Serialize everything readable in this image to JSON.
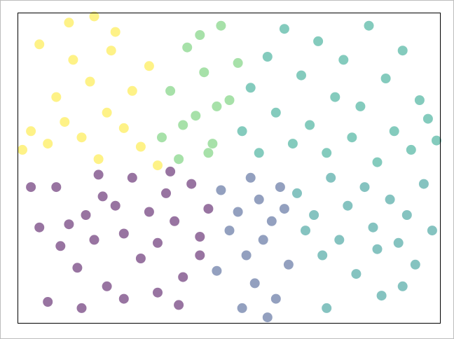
{
  "chart_data": {
    "type": "scatter",
    "title": "",
    "xlabel": "",
    "ylabel": "",
    "xlim": [
      0,
      1
    ],
    "ylim": [
      0,
      1
    ],
    "grid": false,
    "legend": "none",
    "ticks_visible": false,
    "marker_alpha": 0.55,
    "colormap": "viridis",
    "colormap_stops": [
      "#440154",
      "#3b528b",
      "#21918c",
      "#5ec962",
      "#fde725"
    ],
    "points_by_group": [
      {
        "region": "lower-left",
        "color_value": 0.0,
        "color": "#440154",
        "points": [
          [
            0.03,
            0.44
          ],
          [
            0.05,
            0.31
          ],
          [
            0.09,
            0.44
          ],
          [
            0.1,
            0.25
          ],
          [
            0.12,
            0.32
          ],
          [
            0.14,
            0.18
          ],
          [
            0.16,
            0.35
          ],
          [
            0.18,
            0.27
          ],
          [
            0.2,
            0.41
          ],
          [
            0.21,
            0.12
          ],
          [
            0.23,
            0.38
          ],
          [
            0.25,
            0.29
          ],
          [
            0.27,
            0.47
          ],
          [
            0.29,
            0.21
          ],
          [
            0.31,
            0.36
          ],
          [
            0.33,
            0.26
          ],
          [
            0.35,
            0.42
          ],
          [
            0.37,
            0.33
          ],
          [
            0.39,
            0.15
          ],
          [
            0.41,
            0.45
          ],
          [
            0.43,
            0.28
          ],
          [
            0.45,
            0.37
          ],
          [
            0.07,
            0.07
          ],
          [
            0.15,
            0.05
          ],
          [
            0.25,
            0.08
          ],
          [
            0.33,
            0.1
          ],
          [
            0.19,
            0.48
          ],
          [
            0.36,
            0.49
          ],
          [
            0.38,
            0.06
          ],
          [
            0.43,
            0.22
          ]
        ]
      },
      {
        "region": "lower-middle",
        "color_value": 0.3,
        "color": "#3b528b",
        "points": [
          [
            0.48,
            0.43
          ],
          [
            0.5,
            0.3
          ],
          [
            0.52,
            0.36
          ],
          [
            0.54,
            0.22
          ],
          [
            0.55,
            0.47
          ],
          [
            0.56,
            0.13
          ],
          [
            0.57,
            0.4
          ],
          [
            0.58,
            0.27
          ],
          [
            0.6,
            0.33
          ],
          [
            0.61,
            0.08
          ],
          [
            0.62,
            0.44
          ],
          [
            0.64,
            0.19
          ],
          [
            0.53,
            0.05
          ],
          [
            0.59,
            0.02
          ],
          [
            0.47,
            0.17
          ],
          [
            0.63,
            0.37
          ]
        ]
      },
      {
        "region": "lower-right",
        "color_value": 0.5,
        "color": "#21918c",
        "points": [
          [
            0.66,
            0.42
          ],
          [
            0.68,
            0.3
          ],
          [
            0.7,
            0.35
          ],
          [
            0.72,
            0.22
          ],
          [
            0.74,
            0.47
          ],
          [
            0.76,
            0.27
          ],
          [
            0.78,
            0.38
          ],
          [
            0.8,
            0.16
          ],
          [
            0.82,
            0.44
          ],
          [
            0.84,
            0.31
          ],
          [
            0.86,
            0.09
          ],
          [
            0.88,
            0.4
          ],
          [
            0.9,
            0.26
          ],
          [
            0.92,
            0.35
          ],
          [
            0.94,
            0.19
          ],
          [
            0.96,
            0.45
          ],
          [
            0.98,
            0.3
          ],
          [
            0.73,
            0.05
          ],
          [
            0.85,
            0.24
          ],
          [
            0.91,
            0.12
          ]
        ]
      },
      {
        "region": "upper-right",
        "color_value": 0.6,
        "color": "#1fa187",
        "points": [
          [
            0.53,
            0.62
          ],
          [
            0.55,
            0.76
          ],
          [
            0.57,
            0.55
          ],
          [
            0.59,
            0.86
          ],
          [
            0.61,
            0.68
          ],
          [
            0.63,
            0.95
          ],
          [
            0.65,
            0.58
          ],
          [
            0.67,
            0.8
          ],
          [
            0.69,
            0.64
          ],
          [
            0.71,
            0.91
          ],
          [
            0.73,
            0.55
          ],
          [
            0.75,
            0.73
          ],
          [
            0.77,
            0.85
          ],
          [
            0.79,
            0.6
          ],
          [
            0.81,
            0.7
          ],
          [
            0.83,
            0.96
          ],
          [
            0.85,
            0.52
          ],
          [
            0.87,
            0.79
          ],
          [
            0.89,
            0.62
          ],
          [
            0.91,
            0.88
          ],
          [
            0.93,
            0.56
          ],
          [
            0.95,
            0.72
          ],
          [
            0.97,
            0.66
          ],
          [
            0.99,
            0.59
          ]
        ]
      },
      {
        "region": "upper-middle",
        "color_value": 0.8,
        "color": "#5ec962",
        "points": [
          [
            0.34,
            0.6
          ],
          [
            0.36,
            0.75
          ],
          [
            0.38,
            0.53
          ],
          [
            0.4,
            0.89
          ],
          [
            0.42,
            0.67
          ],
          [
            0.44,
            0.81
          ],
          [
            0.46,
            0.58
          ],
          [
            0.48,
            0.96
          ],
          [
            0.5,
            0.72
          ],
          [
            0.52,
            0.84
          ],
          [
            0.39,
            0.64
          ],
          [
            0.45,
            0.55
          ],
          [
            0.47,
            0.7
          ],
          [
            0.43,
            0.93
          ]
        ]
      },
      {
        "region": "upper-left",
        "color_value": 1.0,
        "color": "#fde725",
        "points": [
          [
            0.01,
            0.56
          ],
          [
            0.03,
            0.62
          ],
          [
            0.05,
            0.9
          ],
          [
            0.07,
            0.58
          ],
          [
            0.09,
            0.73
          ],
          [
            0.11,
            0.65
          ],
          [
            0.13,
            0.85
          ],
          [
            0.15,
            0.6
          ],
          [
            0.17,
            0.78
          ],
          [
            0.19,
            0.53
          ],
          [
            0.21,
            0.68
          ],
          [
            0.23,
            0.94
          ],
          [
            0.25,
            0.63
          ],
          [
            0.27,
            0.75
          ],
          [
            0.29,
            0.57
          ],
          [
            0.31,
            0.83
          ],
          [
            0.33,
            0.51
          ],
          [
            0.18,
            0.99
          ],
          [
            0.22,
            0.88
          ],
          [
            0.12,
            0.97
          ]
        ]
      }
    ]
  }
}
